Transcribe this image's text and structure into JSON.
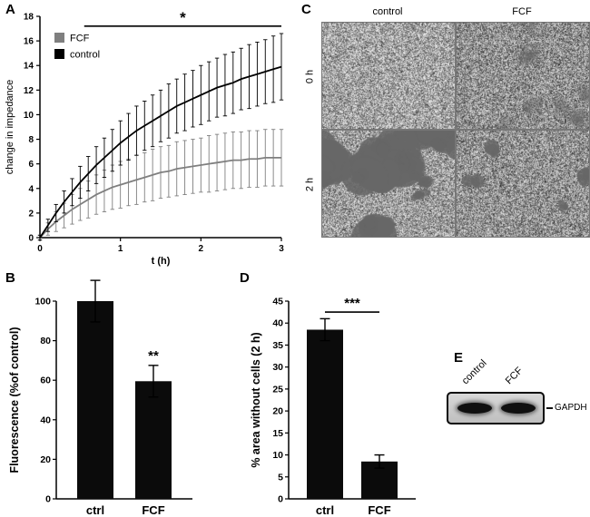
{
  "panels": {
    "a": {
      "label": "A"
    },
    "b": {
      "label": "B"
    },
    "c": {
      "label": "C"
    },
    "d": {
      "label": "D"
    },
    "e": {
      "label": "E"
    }
  },
  "panel_c": {
    "col_labels": [
      "control",
      "FCF"
    ],
    "row_labels": [
      "0 h",
      "2 h"
    ]
  },
  "panel_e": {
    "lane_labels": [
      "control",
      "FCF"
    ],
    "band_label": "GAPDH"
  },
  "chart_data": [
    {
      "id": "impedance",
      "type": "line",
      "title": "",
      "xlabel": "t (h)",
      "ylabel": "change in impedance",
      "xlim": [
        0,
        3
      ],
      "ylim": [
        0,
        18
      ],
      "xticks": [
        0,
        1,
        2,
        3
      ],
      "yticks": [
        0,
        2,
        4,
        6,
        8,
        10,
        12,
        14,
        16,
        18
      ],
      "legend_position": "top-left",
      "grid": false,
      "x": [
        0,
        0.1,
        0.2,
        0.3,
        0.4,
        0.5,
        0.6,
        0.7,
        0.8,
        0.9,
        1,
        1.1,
        1.2,
        1.3,
        1.4,
        1.5,
        1.6,
        1.7,
        1.8,
        1.9,
        2,
        2.1,
        2.2,
        2.3,
        2.4,
        2.5,
        2.6,
        2.7,
        2.8,
        2.9,
        3
      ],
      "series": [
        {
          "name": "FCF",
          "color": "#7f7f7f",
          "values": [
            0,
            0.7,
            1.3,
            1.8,
            2.3,
            2.7,
            3.1,
            3.5,
            3.8,
            4.1,
            4.3,
            4.5,
            4.7,
            4.9,
            5.1,
            5.3,
            5.4,
            5.6,
            5.7,
            5.8,
            5.9,
            6.0,
            6.1,
            6.2,
            6.3,
            6.3,
            6.4,
            6.4,
            6.5,
            6.5,
            6.5
          ],
          "errors": [
            0.2,
            0.5,
            0.8,
            1.0,
            1.2,
            1.3,
            1.5,
            1.6,
            1.7,
            1.8,
            1.9,
            1.9,
            2.0,
            2.0,
            2.1,
            2.1,
            2.1,
            2.2,
            2.2,
            2.2,
            2.2,
            2.3,
            2.3,
            2.3,
            2.3,
            2.3,
            2.3,
            2.3,
            2.3,
            2.3,
            2.3
          ]
        },
        {
          "name": "control",
          "color": "#000000",
          "values": [
            0,
            1.0,
            2.0,
            2.9,
            3.7,
            4.5,
            5.2,
            5.9,
            6.5,
            7.1,
            7.7,
            8.2,
            8.7,
            9.1,
            9.5,
            9.9,
            10.3,
            10.7,
            11.0,
            11.3,
            11.6,
            11.9,
            12.2,
            12.4,
            12.6,
            12.9,
            13.1,
            13.3,
            13.5,
            13.7,
            13.9
          ],
          "errors": [
            0.2,
            0.5,
            0.7,
            0.9,
            1.1,
            1.3,
            1.4,
            1.5,
            1.6,
            1.7,
            1.8,
            1.9,
            2.0,
            2.0,
            2.1,
            2.1,
            2.2,
            2.2,
            2.3,
            2.3,
            2.4,
            2.4,
            2.4,
            2.5,
            2.5,
            2.5,
            2.6,
            2.6,
            2.6,
            2.7,
            2.7
          ]
        }
      ],
      "significance": {
        "label": "*",
        "x_from": 0.55,
        "x_to": 3.0,
        "y": 17.2
      }
    },
    {
      "id": "fluorescence",
      "type": "bar",
      "title": "",
      "xlabel": "",
      "ylabel": "Fluorescence (%of control)",
      "categories": [
        "ctrl",
        "FCF"
      ],
      "values": [
        100,
        59.5
      ],
      "errors": [
        10.5,
        8
      ],
      "bar_color": "#0b0b0b",
      "ylim": [
        0,
        100
      ],
      "yticks": [
        0,
        20,
        40,
        60,
        80,
        100
      ],
      "significance": {
        "label": "**",
        "over_index": 1,
        "bracket": false
      }
    },
    {
      "id": "area-without-cells",
      "type": "bar",
      "title": "",
      "xlabel": "",
      "ylabel": "% area without cells (2 h)",
      "categories": [
        "ctrl",
        "FCF"
      ],
      "values": [
        38.5,
        8.5
      ],
      "errors": [
        2.5,
        1.5
      ],
      "bar_color": "#0b0b0b",
      "ylim": [
        0,
        45
      ],
      "yticks": [
        0,
        5,
        10,
        15,
        20,
        25,
        30,
        35,
        40,
        45
      ],
      "significance": {
        "label": "***",
        "bracket": true,
        "y": 42.5
      }
    }
  ]
}
